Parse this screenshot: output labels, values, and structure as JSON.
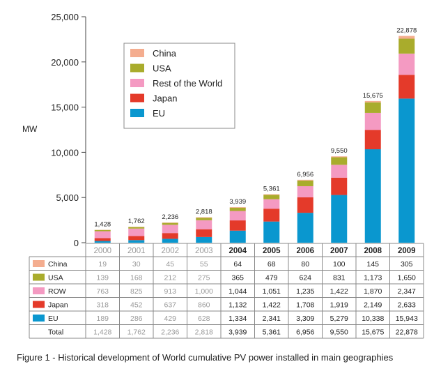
{
  "chart_data": {
    "type": "bar",
    "stacked": true,
    "ylabel": "MW",
    "ylim": [
      0,
      25000
    ],
    "yticks": [
      0,
      5000,
      10000,
      15000,
      20000,
      25000
    ],
    "ytick_labels": [
      "0",
      "5,000",
      "10,000",
      "15,000",
      "20,000",
      "25,000"
    ],
    "categories": [
      "2000",
      "2001",
      "2002",
      "2003",
      "2004",
      "2005",
      "2006",
      "2007",
      "2008",
      "2009"
    ],
    "series": [
      {
        "key": "eu",
        "name": "EU",
        "color": "#0a97cf",
        "values": [
          189,
          286,
          429,
          628,
          1334,
          2341,
          3309,
          5279,
          10338,
          15943
        ],
        "labels": [
          "189",
          "286",
          "429",
          "628",
          "1,334",
          "2,341",
          "3,309",
          "5,279",
          "10,338",
          "15,943"
        ]
      },
      {
        "key": "japan",
        "name": "Japan",
        "color": "#e43a2a",
        "values": [
          318,
          452,
          637,
          860,
          1132,
          1422,
          1708,
          1919,
          2149,
          2633
        ],
        "labels": [
          "318",
          "452",
          "637",
          "860",
          "1,132",
          "1,422",
          "1,708",
          "1,919",
          "2,149",
          "2,633"
        ]
      },
      {
        "key": "row",
        "name": "Rest of the World",
        "table_name": "ROW",
        "color": "#f49ac2",
        "values": [
          763,
          825,
          913,
          1000,
          1044,
          1051,
          1235,
          1422,
          1870,
          2347
        ],
        "labels": [
          "763",
          "825",
          "913",
          "1,000",
          "1,044",
          "1,051",
          "1,235",
          "1,422",
          "1,870",
          "2,347"
        ]
      },
      {
        "key": "usa",
        "name": "USA",
        "color": "#a9ac2c",
        "values": [
          139,
          168,
          212,
          275,
          365,
          479,
          624,
          831,
          1173,
          1650
        ],
        "labels": [
          "139",
          "168",
          "212",
          "275",
          "365",
          "479",
          "624",
          "831",
          "1,173",
          "1,650"
        ]
      },
      {
        "key": "china",
        "name": "China",
        "color": "#f4ad8f",
        "values": [
          19,
          30,
          45,
          55,
          64,
          68,
          80,
          100,
          145,
          305
        ],
        "labels": [
          "19",
          "30",
          "45",
          "55",
          "64",
          "68",
          "80",
          "100",
          "145",
          "305"
        ]
      }
    ],
    "totals": [
      1428,
      1762,
      2236,
      2818,
      3939,
      5361,
      6956,
      9550,
      15675,
      22878
    ],
    "total_labels": [
      "1,428",
      "1,762",
      "2,236",
      "2,818",
      "3,939",
      "5,361",
      "6,956",
      "9,550",
      "15,675",
      "22,878"
    ],
    "legend_order": [
      "china",
      "usa",
      "row",
      "japan",
      "eu"
    ],
    "legend_placement": "top-left",
    "grid": false,
    "highlighted_years_from": "2004"
  },
  "table": {
    "row_order": [
      "china",
      "usa",
      "row",
      "japan",
      "eu"
    ],
    "total_label": "Total",
    "dim_color": "#999999",
    "dark_color": "#222222"
  },
  "caption": "Figure 1 - Historical development of World cumulative PV power installed in main geographies"
}
